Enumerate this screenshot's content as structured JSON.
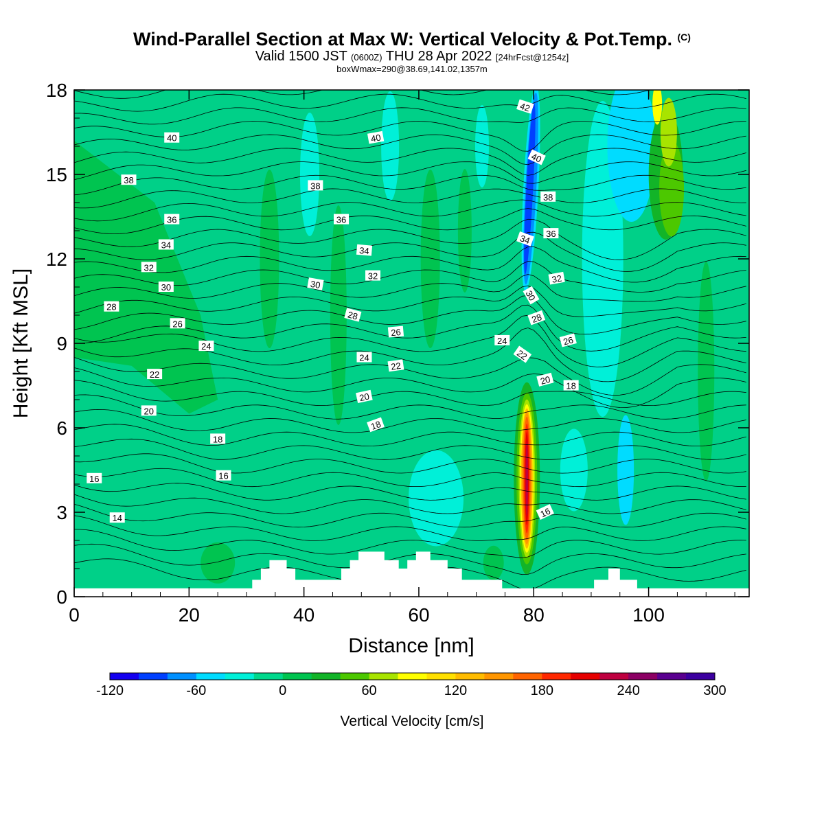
{
  "title": {
    "main": "Wind-Parallel Section at Max W: Vertical Velocity & Pot.Temp.",
    "copyright": "(C)",
    "valid_prefix": "Valid 1500 JST",
    "valid_utc": "(0600Z)",
    "valid_date": "THU 28 Apr 2022",
    "forecast": "[24hrFcst@1254z]",
    "boxline": "boxWmax=290@38.69,141.02,1357m"
  },
  "chart_data": {
    "type": "heatmap",
    "xlabel": "Distance [nm]",
    "ylabel": "Height [Kft MSL]",
    "xlim": [
      0,
      117.5
    ],
    "ylim": [
      0,
      18
    ],
    "x_ticks": [
      0,
      20,
      40,
      60,
      80,
      100
    ],
    "y_ticks": [
      0,
      3,
      6,
      9,
      12,
      15,
      18
    ],
    "colorbar": {
      "label": "Vertical Velocity [cm/s]",
      "min": -120,
      "max": 300,
      "step": 20,
      "tick_values": [
        -120,
        -60,
        0,
        60,
        120,
        180,
        240,
        300
      ],
      "colors": [
        "#1400f0",
        "#0040ff",
        "#0090ff",
        "#00dcff",
        "#00f0d8",
        "#00d88c",
        "#00c450",
        "#12b428",
        "#4cc800",
        "#a8e400",
        "#ffff00",
        "#ffe000",
        "#ffbc00",
        "#ff9600",
        "#ff6400",
        "#ff2800",
        "#e60000",
        "#be0040",
        "#8c0064",
        "#5a0090",
        "#3c00a0"
      ]
    },
    "theta_labels": [
      {
        "text": "40",
        "x": 17,
        "y": 16.3,
        "rot": 0
      },
      {
        "text": "40",
        "x": 52.5,
        "y": 16.3,
        "rot": -10
      },
      {
        "text": "42",
        "x": 78.5,
        "y": 17.4,
        "rot": 18
      },
      {
        "text": "40",
        "x": 80.5,
        "y": 15.6,
        "rot": 25
      },
      {
        "text": "38",
        "x": 9.5,
        "y": 14.8,
        "rot": 0
      },
      {
        "text": "38",
        "x": 42,
        "y": 14.6,
        "rot": 0
      },
      {
        "text": "38",
        "x": 82.5,
        "y": 14.2,
        "rot": 0
      },
      {
        "text": "36",
        "x": 17,
        "y": 13.4,
        "rot": 0
      },
      {
        "text": "36",
        "x": 46.5,
        "y": 13.4,
        "rot": 0
      },
      {
        "text": "36",
        "x": 83,
        "y": 12.9,
        "rot": 0
      },
      {
        "text": "34",
        "x": 16,
        "y": 12.5,
        "rot": 0
      },
      {
        "text": "34",
        "x": 50.5,
        "y": 12.3,
        "rot": 5
      },
      {
        "text": "34",
        "x": 78.5,
        "y": 12.7,
        "rot": 20
      },
      {
        "text": "32",
        "x": 13,
        "y": 11.7,
        "rot": 0
      },
      {
        "text": "32",
        "x": 52,
        "y": 11.4,
        "rot": 0
      },
      {
        "text": "32",
        "x": 84,
        "y": 11.3,
        "rot": -10
      },
      {
        "text": "30",
        "x": 16,
        "y": 11.0,
        "rot": 0
      },
      {
        "text": "30",
        "x": 42,
        "y": 11.1,
        "rot": 10
      },
      {
        "text": "30",
        "x": 79.5,
        "y": 10.7,
        "rot": 60
      },
      {
        "text": "28",
        "x": 6.5,
        "y": 10.3,
        "rot": 0
      },
      {
        "text": "28",
        "x": 48.5,
        "y": 10.0,
        "rot": 15
      },
      {
        "text": "28",
        "x": 80.5,
        "y": 9.9,
        "rot": -20
      },
      {
        "text": "26",
        "x": 18,
        "y": 9.7,
        "rot": 0
      },
      {
        "text": "26",
        "x": 56,
        "y": 9.4,
        "rot": -5
      },
      {
        "text": "26",
        "x": 86,
        "y": 9.1,
        "rot": -15
      },
      {
        "text": "24",
        "x": 23,
        "y": 8.9,
        "rot": 0
      },
      {
        "text": "24",
        "x": 50.5,
        "y": 8.5,
        "rot": 0
      },
      {
        "text": "24",
        "x": 74.5,
        "y": 9.1,
        "rot": 0
      },
      {
        "text": "22",
        "x": 14,
        "y": 7.9,
        "rot": 0
      },
      {
        "text": "22",
        "x": 56,
        "y": 8.2,
        "rot": -8
      },
      {
        "text": "22",
        "x": 78,
        "y": 8.6,
        "rot": 35
      },
      {
        "text": "20",
        "x": 13,
        "y": 6.6,
        "rot": 0
      },
      {
        "text": "20",
        "x": 50.5,
        "y": 7.1,
        "rot": -12
      },
      {
        "text": "20",
        "x": 82,
        "y": 7.7,
        "rot": -15
      },
      {
        "text": "18",
        "x": 25,
        "y": 5.6,
        "rot": 0
      },
      {
        "text": "18",
        "x": 52.5,
        "y": 6.1,
        "rot": -20
      },
      {
        "text": "18",
        "x": 86.5,
        "y": 7.5,
        "rot": 0
      },
      {
        "text": "16",
        "x": 3.5,
        "y": 4.2,
        "rot": 0
      },
      {
        "text": "16",
        "x": 26,
        "y": 4.3,
        "rot": 0
      },
      {
        "text": "16",
        "x": 82,
        "y": 3.0,
        "rot": -25
      },
      {
        "text": "14",
        "x": 7.5,
        "y": 2.8,
        "rot": 0
      }
    ]
  }
}
